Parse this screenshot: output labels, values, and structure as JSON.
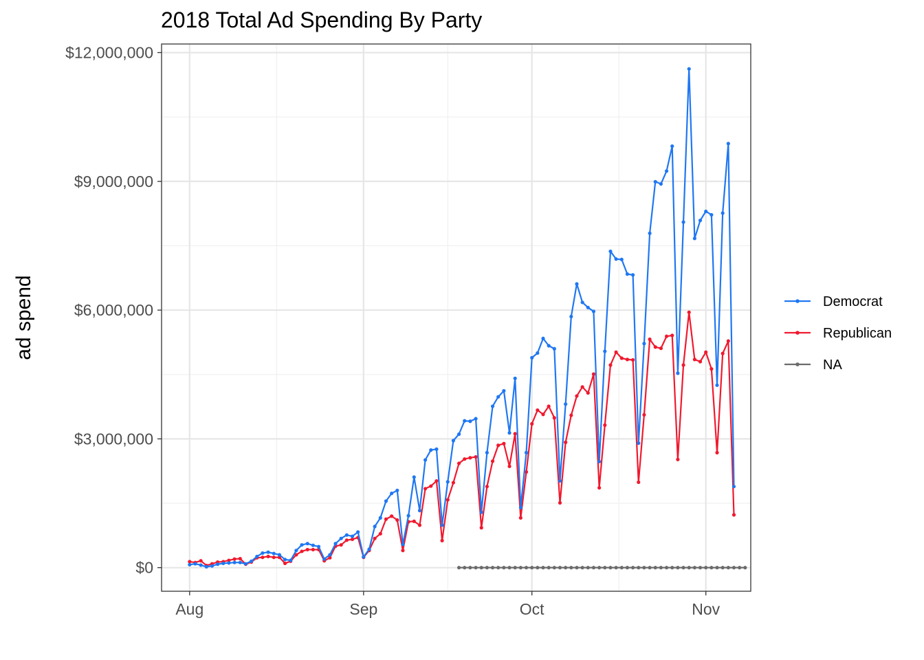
{
  "chart_data": {
    "type": "line",
    "title": "2018 Total Ad Spending By Party",
    "ylabel": "ad spend",
    "xlabel": "",
    "x_axis": {
      "type": "date",
      "range": [
        "2018-07-27",
        "2018-11-09"
      ],
      "ticks": [
        {
          "date": "2018-08-01",
          "label": "Aug"
        },
        {
          "date": "2018-09-01",
          "label": "Sep"
        },
        {
          "date": "2018-10-01",
          "label": "Oct"
        },
        {
          "date": "2018-11-01",
          "label": "Nov"
        }
      ]
    },
    "y_axis": {
      "ylim": [
        -550000,
        12200000
      ],
      "ticks": [
        {
          "value": 0,
          "label": "$0"
        },
        {
          "value": 3000000,
          "label": "$3,000,000"
        },
        {
          "value": 6000000,
          "label": "$6,000,000"
        },
        {
          "value": 9000000,
          "label": "$9,000,000"
        },
        {
          "value": 12000000,
          "label": "$12,000,000"
        }
      ]
    },
    "grid": true,
    "legend": "right",
    "series": [
      {
        "name": "Democrat",
        "color": "#1f77f2",
        "start_date": "2018-08-01",
        "values": [
          70000,
          90000,
          60000,
          20000,
          40000,
          80000,
          100000,
          110000,
          120000,
          120000,
          90000,
          150000,
          260000,
          340000,
          360000,
          330000,
          300000,
          190000,
          170000,
          400000,
          530000,
          560000,
          520000,
          490000,
          200000,
          300000,
          560000,
          680000,
          760000,
          730000,
          830000,
          250000,
          430000,
          960000,
          1160000,
          1550000,
          1730000,
          1800000,
          540000,
          1210000,
          2110000,
          1330000,
          2510000,
          2740000,
          2760000,
          990000,
          2000000,
          2960000,
          3110000,
          3420000,
          3410000,
          3470000,
          1290000,
          2680000,
          3760000,
          3980000,
          4120000,
          3140000,
          4410000,
          1400000,
          2680000,
          4890000,
          5000000,
          5340000,
          5170000,
          5100000,
          2020000,
          3810000,
          5850000,
          6610000,
          6180000,
          6060000,
          5970000,
          2470000,
          5040000,
          7370000,
          7190000,
          7180000,
          6840000,
          6820000,
          2900000,
          5220000,
          7790000,
          8990000,
          8940000,
          9240000,
          9820000,
          4530000,
          8050000,
          11620000,
          7670000,
          8090000,
          8300000,
          8220000,
          4250000,
          8260000,
          9880000,
          1890000
        ]
      },
      {
        "name": "Republican",
        "color": "#f0192e",
        "start_date": "2018-08-01",
        "values": [
          140000,
          120000,
          160000,
          50000,
          90000,
          130000,
          140000,
          170000,
          200000,
          210000,
          80000,
          130000,
          230000,
          240000,
          260000,
          240000,
          240000,
          100000,
          150000,
          300000,
          380000,
          420000,
          420000,
          420000,
          160000,
          230000,
          500000,
          530000,
          640000,
          660000,
          700000,
          240000,
          400000,
          680000,
          790000,
          1130000,
          1200000,
          1110000,
          400000,
          1070000,
          1080000,
          990000,
          1840000,
          1900000,
          2020000,
          630000,
          1580000,
          1980000,
          2430000,
          2530000,
          2560000,
          2580000,
          930000,
          1890000,
          2480000,
          2850000,
          2890000,
          2360000,
          3120000,
          1160000,
          2230000,
          3350000,
          3670000,
          3570000,
          3760000,
          3490000,
          1510000,
          2920000,
          3550000,
          4000000,
          4210000,
          4070000,
          4510000,
          1860000,
          3320000,
          4720000,
          5020000,
          4880000,
          4850000,
          4840000,
          1990000,
          3560000,
          5320000,
          5140000,
          5110000,
          5390000,
          5410000,
          2520000,
          4720000,
          5950000,
          4850000,
          4800000,
          5020000,
          4630000,
          2680000,
          4990000,
          5280000,
          1230000
        ]
      },
      {
        "name": "NA",
        "color": "#6b6b6b",
        "start_date": "2018-09-18",
        "values": [
          0,
          0,
          0,
          0,
          0,
          0,
          0,
          0,
          0,
          0,
          0,
          0,
          0,
          0,
          0,
          0,
          0,
          0,
          0,
          0,
          0,
          0,
          0,
          0,
          0,
          0,
          0,
          0,
          0,
          0,
          0,
          0,
          0,
          0,
          0,
          0,
          0,
          0,
          0,
          0,
          0,
          0,
          0,
          0,
          0,
          0,
          0,
          0,
          0,
          0,
          0,
          0
        ]
      }
    ]
  }
}
